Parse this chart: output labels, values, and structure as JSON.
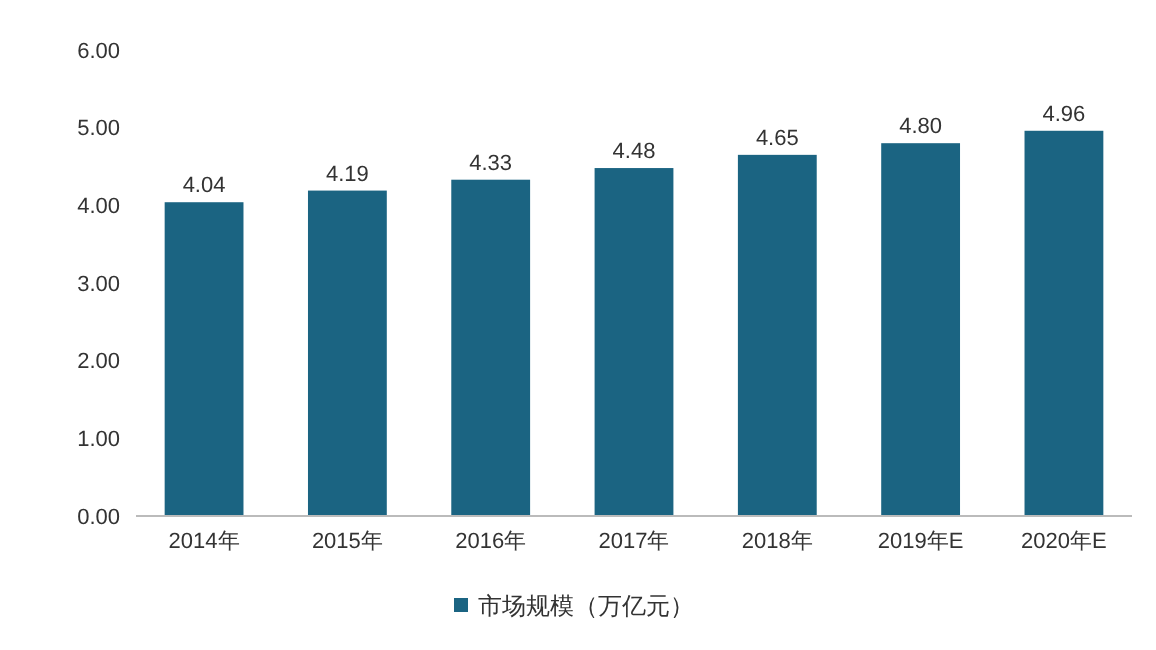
{
  "chart_data": {
    "type": "bar",
    "categories": [
      "2014年",
      "2015年",
      "2016年",
      "2017年",
      "2018年",
      "2019年E",
      "2020年E"
    ],
    "series": [
      {
        "name": "市场规模（万亿元）",
        "color": "#1b6482",
        "values": [
          4.04,
          4.19,
          4.33,
          4.48,
          4.65,
          4.8,
          4.96
        ],
        "value_labels": [
          "4.04",
          "4.19",
          "4.33",
          "4.48",
          "4.65",
          "4.80",
          "4.96"
        ]
      }
    ],
    "ylim": [
      0,
      6
    ],
    "yticks": [
      {
        "value": 0,
        "label": "0.00"
      },
      {
        "value": 1,
        "label": "1.00"
      },
      {
        "value": 2,
        "label": "2.00"
      },
      {
        "value": 3,
        "label": "3.00"
      },
      {
        "value": 4,
        "label": "4.00"
      },
      {
        "value": 5,
        "label": "5.00"
      },
      {
        "value": 6,
        "label": "6.00"
      }
    ],
    "grid": false,
    "legend": "bottom"
  }
}
